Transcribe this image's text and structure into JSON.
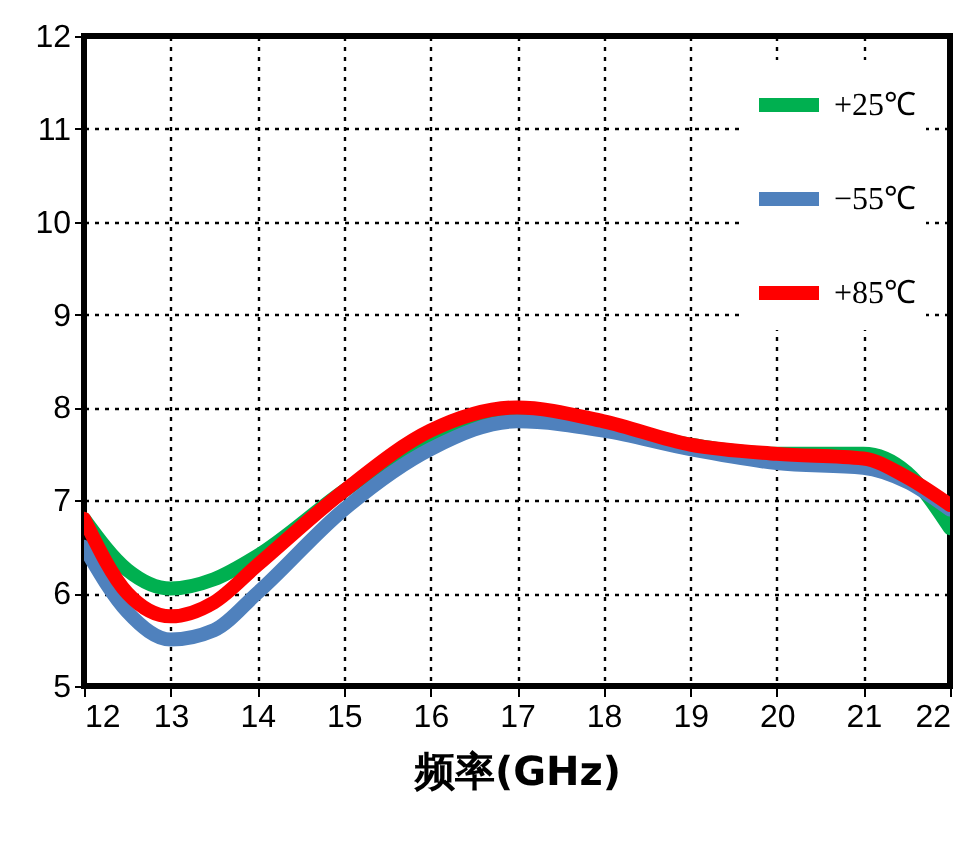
{
  "chart_data": {
    "type": "line",
    "xlabel": "频率(GHz)",
    "x": [
      12,
      12.5,
      13,
      13.5,
      14,
      15,
      16,
      17,
      18,
      19,
      20,
      21,
      21.5,
      22
    ],
    "series": [
      {
        "name": "+25℃",
        "color": "#00b050",
        "values": [
          6.8,
          6.25,
          6.05,
          6.15,
          6.4,
          7.1,
          7.7,
          7.95,
          7.8,
          7.6,
          7.5,
          7.5,
          7.3,
          6.7
        ]
      },
      {
        "name": "−55℃",
        "color": "#4f81bd",
        "values": [
          6.5,
          5.8,
          5.5,
          5.6,
          6.0,
          6.9,
          7.55,
          7.85,
          7.75,
          7.55,
          7.4,
          7.35,
          7.2,
          6.9
        ]
      },
      {
        "name": "+85℃",
        "color": "#ff0000",
        "values": [
          6.8,
          6.0,
          5.75,
          5.9,
          6.3,
          7.1,
          7.75,
          8.0,
          7.85,
          7.6,
          7.5,
          7.45,
          7.25,
          6.95
        ]
      }
    ],
    "xlim": [
      12,
      22
    ],
    "xticks": [
      12,
      13,
      14,
      15,
      16,
      17,
      18,
      19,
      20,
      21,
      22
    ],
    "ylim": [
      5,
      12
    ],
    "yticks": [
      5,
      6,
      7,
      8,
      9,
      10,
      11,
      12
    ],
    "grid": true,
    "legend": "top right",
    "marker": "none",
    "line_style": "solid"
  }
}
